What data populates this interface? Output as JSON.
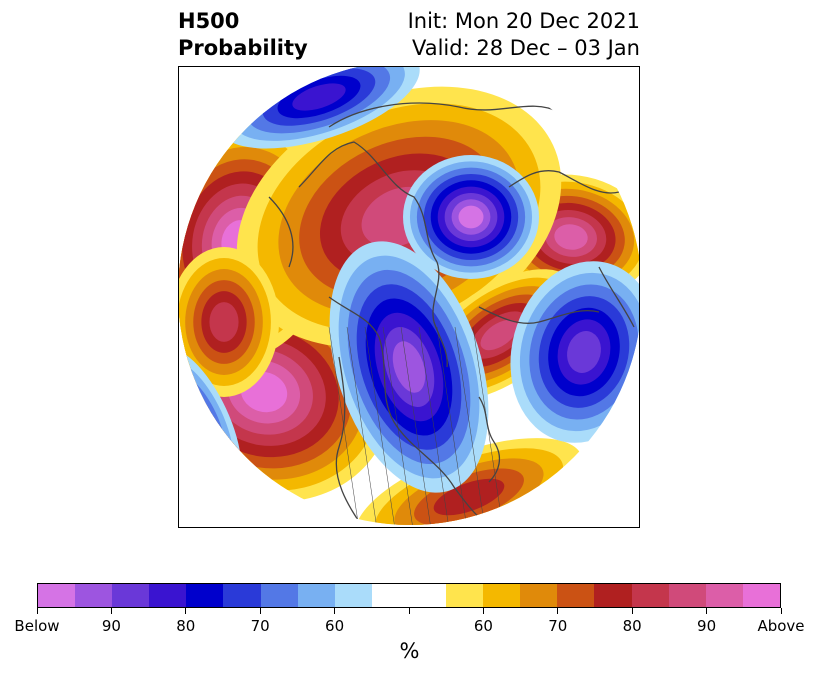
{
  "title": {
    "variable": "H500",
    "product": "Probability",
    "init": "Init: Mon 20 Dec 2021",
    "valid": "Valid: 28 Dec – 03 Jan"
  },
  "map": {
    "projection": "north-polar-stereographic",
    "coastline_color": "#444444",
    "features": [
      {
        "name": "above-alaska-high",
        "category": "above",
        "level": 90
      },
      {
        "name": "above-north-pacific-high",
        "category": "above",
        "level": 90
      },
      {
        "name": "above-europe-high",
        "category": "above",
        "level": 85
      },
      {
        "name": "above-arctic-ridge",
        "category": "above",
        "level": 80
      },
      {
        "name": "above-atlantic-ridge",
        "category": "above",
        "level": 80
      },
      {
        "name": "above-central-pacific-ridge",
        "category": "above",
        "level": 75
      },
      {
        "name": "above-southern-us-ridge",
        "category": "above",
        "level": 70
      },
      {
        "name": "below-siberia-low",
        "category": "below",
        "level": 90
      },
      {
        "name": "below-north-america-trough",
        "category": "below",
        "level": 85
      },
      {
        "name": "below-north-atlantic-low",
        "category": "below",
        "level": 80
      },
      {
        "name": "below-north-pacific-low",
        "category": "below",
        "level": 75
      },
      {
        "name": "below-western-pacific-low",
        "category": "below",
        "level": 70
      }
    ]
  },
  "colorbar": {
    "colors": [
      "#d573e5",
      "#9d55e0",
      "#6a38d8",
      "#3a14d0",
      "#0000cc",
      "#2a3ad8",
      "#5378e6",
      "#78b0f2",
      "#aadcfa",
      "#ffffff",
      "#ffffff",
      "#ffe44d",
      "#f4b800",
      "#e08a0a",
      "#cb5214",
      "#b02020",
      "#c4364c",
      "#d04a7a",
      "#dc5ea8",
      "#e870d8"
    ],
    "tick_labels": [
      "Below",
      "90",
      "80",
      "70",
      "60",
      "",
      "60",
      "70",
      "80",
      "90",
      "Above"
    ],
    "unit": "%"
  }
}
